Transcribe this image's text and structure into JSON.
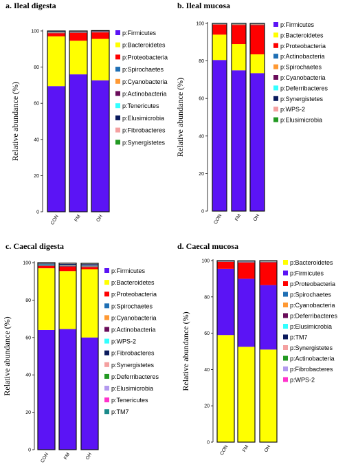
{
  "chart_data": [
    {
      "type": "bar",
      "stacked": true,
      "title": "a. Ileal digesta",
      "ylabel": "Relative abundance (%)",
      "ylim": [
        0,
        100
      ],
      "yticks": [
        0,
        20,
        40,
        60,
        80,
        100
      ],
      "categories": [
        "CON",
        "FM",
        "OH"
      ],
      "legend_position": "right",
      "series": [
        {
          "name": "p:Firmicutes",
          "color": "#5b14f5",
          "values": [
            69.5,
            76,
            72.7
          ]
        },
        {
          "name": "p:Bacteroidetes",
          "color": "#ffff00",
          "values": [
            27.5,
            18.6,
            22.9
          ]
        },
        {
          "name": "p:Proteobacteria",
          "color": "#ff0000",
          "values": [
            1.8,
            4.4,
            3.6
          ]
        },
        {
          "name": "p:Spirochaetes",
          "color": "#1f6fb4",
          "values": [
            0.2,
            0.2,
            0.2
          ]
        },
        {
          "name": "p:Cyanobacteria",
          "color": "#ff9933",
          "values": [
            0.2,
            0.2,
            0.2
          ]
        },
        {
          "name": "p:Actinobacteria",
          "color": "#6a0d5a",
          "values": [
            0.2,
            0.2,
            0.2
          ]
        },
        {
          "name": "p:Tenericutes",
          "color": "#33ffff",
          "values": [
            0.2,
            0.1,
            0.1
          ]
        },
        {
          "name": "p:Elusimicrobia",
          "color": "#0a1a5c",
          "values": [
            0.2,
            0.1,
            0.1
          ]
        },
        {
          "name": "p:Fibrobacteres",
          "color": "#f4a0a0",
          "values": [
            0.1,
            0.1,
            0.1
          ]
        },
        {
          "name": "p:Synergistetes",
          "color": "#229922",
          "values": [
            0.1,
            0.1,
            0.1
          ]
        }
      ]
    },
    {
      "type": "bar",
      "stacked": true,
      "title": "b. Ileal mucosa",
      "ylabel": "Relative abundance (%)",
      "ylim": [
        0,
        100
      ],
      "yticks": [
        0,
        20,
        40,
        60,
        80,
        100
      ],
      "categories": [
        "CON",
        "FM",
        "OH"
      ],
      "legend_position": "right",
      "series": [
        {
          "name": "p:Firmicutes",
          "color": "#5b14f5",
          "values": [
            80.5,
            75,
            73.5
          ]
        },
        {
          "name": "p:Bacteroidetes",
          "color": "#ffff00",
          "values": [
            13.5,
            14,
            10
          ]
        },
        {
          "name": "p:Proteobacteria",
          "color": "#ff0000",
          "values": [
            5.4,
            10.2,
            15.6
          ]
        },
        {
          "name": "p:Actinobacteria",
          "color": "#1f6fb4",
          "values": [
            0.1,
            0.2,
            0.2
          ]
        },
        {
          "name": "p:Spirochaetes",
          "color": "#ff9933",
          "values": [
            0.1,
            0.2,
            0.2
          ]
        },
        {
          "name": "p:Cyanobacteria",
          "color": "#6a0d5a",
          "values": [
            0.1,
            0.1,
            0.1
          ]
        },
        {
          "name": "p:Deferribacteres",
          "color": "#33ffff",
          "values": [
            0.1,
            0.1,
            0.1
          ]
        },
        {
          "name": "p:Synergistetes",
          "color": "#0a1a5c",
          "values": [
            0.1,
            0.1,
            0.1
          ]
        },
        {
          "name": "p:WPS-2",
          "color": "#f4a0a0",
          "values": [
            0.05,
            0.05,
            0.1
          ]
        },
        {
          "name": "p:Elusimicrobia",
          "color": "#229922",
          "values": [
            0.05,
            0.05,
            0.1
          ]
        }
      ]
    },
    {
      "type": "bar",
      "stacked": true,
      "title": "c. Caecal digesta",
      "ylabel": "Relative abundance (%)",
      "ylim": [
        0,
        100
      ],
      "yticks": [
        0,
        20,
        40,
        60,
        80,
        100
      ],
      "categories": [
        "CON",
        "FM",
        "OH"
      ],
      "legend_position": "right",
      "series": [
        {
          "name": "p:Firmicutes",
          "color": "#5b14f5",
          "values": [
            64,
            64.5,
            60
          ]
        },
        {
          "name": "p:Bacteroidetes",
          "color": "#ffff00",
          "values": [
            33,
            31,
            36.5
          ]
        },
        {
          "name": "p:Proteobacteria",
          "color": "#ff0000",
          "values": [
            1.2,
            2.5,
            1.2
          ]
        },
        {
          "name": "p:Spirochaetes",
          "color": "#1f6fb4",
          "values": [
            0.3,
            0.3,
            0.3
          ]
        },
        {
          "name": "p:Cyanobacteria",
          "color": "#ff9933",
          "values": [
            0.2,
            0.2,
            0.2
          ]
        },
        {
          "name": "p:Actinobacteria",
          "color": "#6a0d5a",
          "values": [
            0.2,
            0.2,
            0.2
          ]
        },
        {
          "name": "p:WPS-2",
          "color": "#33ffff",
          "values": [
            0.2,
            0.2,
            0.2
          ]
        },
        {
          "name": "p:Fibrobacteres",
          "color": "#0a1a5c",
          "values": [
            0.4,
            0.4,
            0.6
          ]
        },
        {
          "name": "p:Synergistetes",
          "color": "#f4a0a0",
          "values": [
            0.1,
            0.1,
            0.1
          ]
        },
        {
          "name": "p:Deferribacteres",
          "color": "#229922",
          "values": [
            0.1,
            0.1,
            0.1
          ]
        },
        {
          "name": "p:Elusimicrobia",
          "color": "#b399ee",
          "values": [
            0.1,
            0.1,
            0.1
          ]
        },
        {
          "name": "p:Tenericutes",
          "color": "#ff33cc",
          "values": [
            0.1,
            0.1,
            0.1
          ]
        },
        {
          "name": "p:TM7",
          "color": "#1a8a8a",
          "values": [
            0.1,
            0.1,
            0.1
          ]
        }
      ]
    },
    {
      "type": "bar",
      "stacked": true,
      "title": "d. Caecal mucosa",
      "ylabel": "Relative abundance (%)",
      "ylim": [
        0,
        100
      ],
      "yticks": [
        0,
        20,
        40,
        60,
        80,
        100
      ],
      "categories": [
        "CON",
        "FM",
        "OH"
      ],
      "legend_position": "right",
      "series": [
        {
          "name": "p:Bacteroidetes",
          "color": "#ffff00",
          "values": [
            59,
            52.5,
            51
          ]
        },
        {
          "name": "p:Firmicutes",
          "color": "#5b14f5",
          "values": [
            36.5,
            37.5,
            35.5
          ]
        },
        {
          "name": "p:Proteobacteria",
          "color": "#ff0000",
          "values": [
            3.8,
            9,
            12.6
          ]
        },
        {
          "name": "p:Spirochaetes",
          "color": "#1f6fb4",
          "values": [
            0.1,
            0.2,
            0.2
          ]
        },
        {
          "name": "p:Cyanobacteria",
          "color": "#ff9933",
          "values": [
            0.1,
            0.1,
            0.1
          ]
        },
        {
          "name": "p:Deferribacteres",
          "color": "#6a0d5a",
          "values": [
            0.1,
            0.1,
            0.1
          ]
        },
        {
          "name": "p:Elusimicrobia",
          "color": "#33ffff",
          "values": [
            0.1,
            0.1,
            0.1
          ]
        },
        {
          "name": "p:TM7",
          "color": "#0a1a5c",
          "values": [
            0.1,
            0.1,
            0.1
          ]
        },
        {
          "name": "p:Synergistetes",
          "color": "#f4a0a0",
          "values": [
            0.05,
            0.1,
            0.1
          ]
        },
        {
          "name": "p:Actinobacteria",
          "color": "#229922",
          "values": [
            0.05,
            0.1,
            0.1
          ]
        },
        {
          "name": "p:Fibrobacteres",
          "color": "#b399ee",
          "values": [
            0.05,
            0.05,
            0.05
          ]
        },
        {
          "name": "p:WPS-2",
          "color": "#ff33cc",
          "values": [
            0.05,
            0.05,
            0.05
          ]
        }
      ]
    }
  ]
}
